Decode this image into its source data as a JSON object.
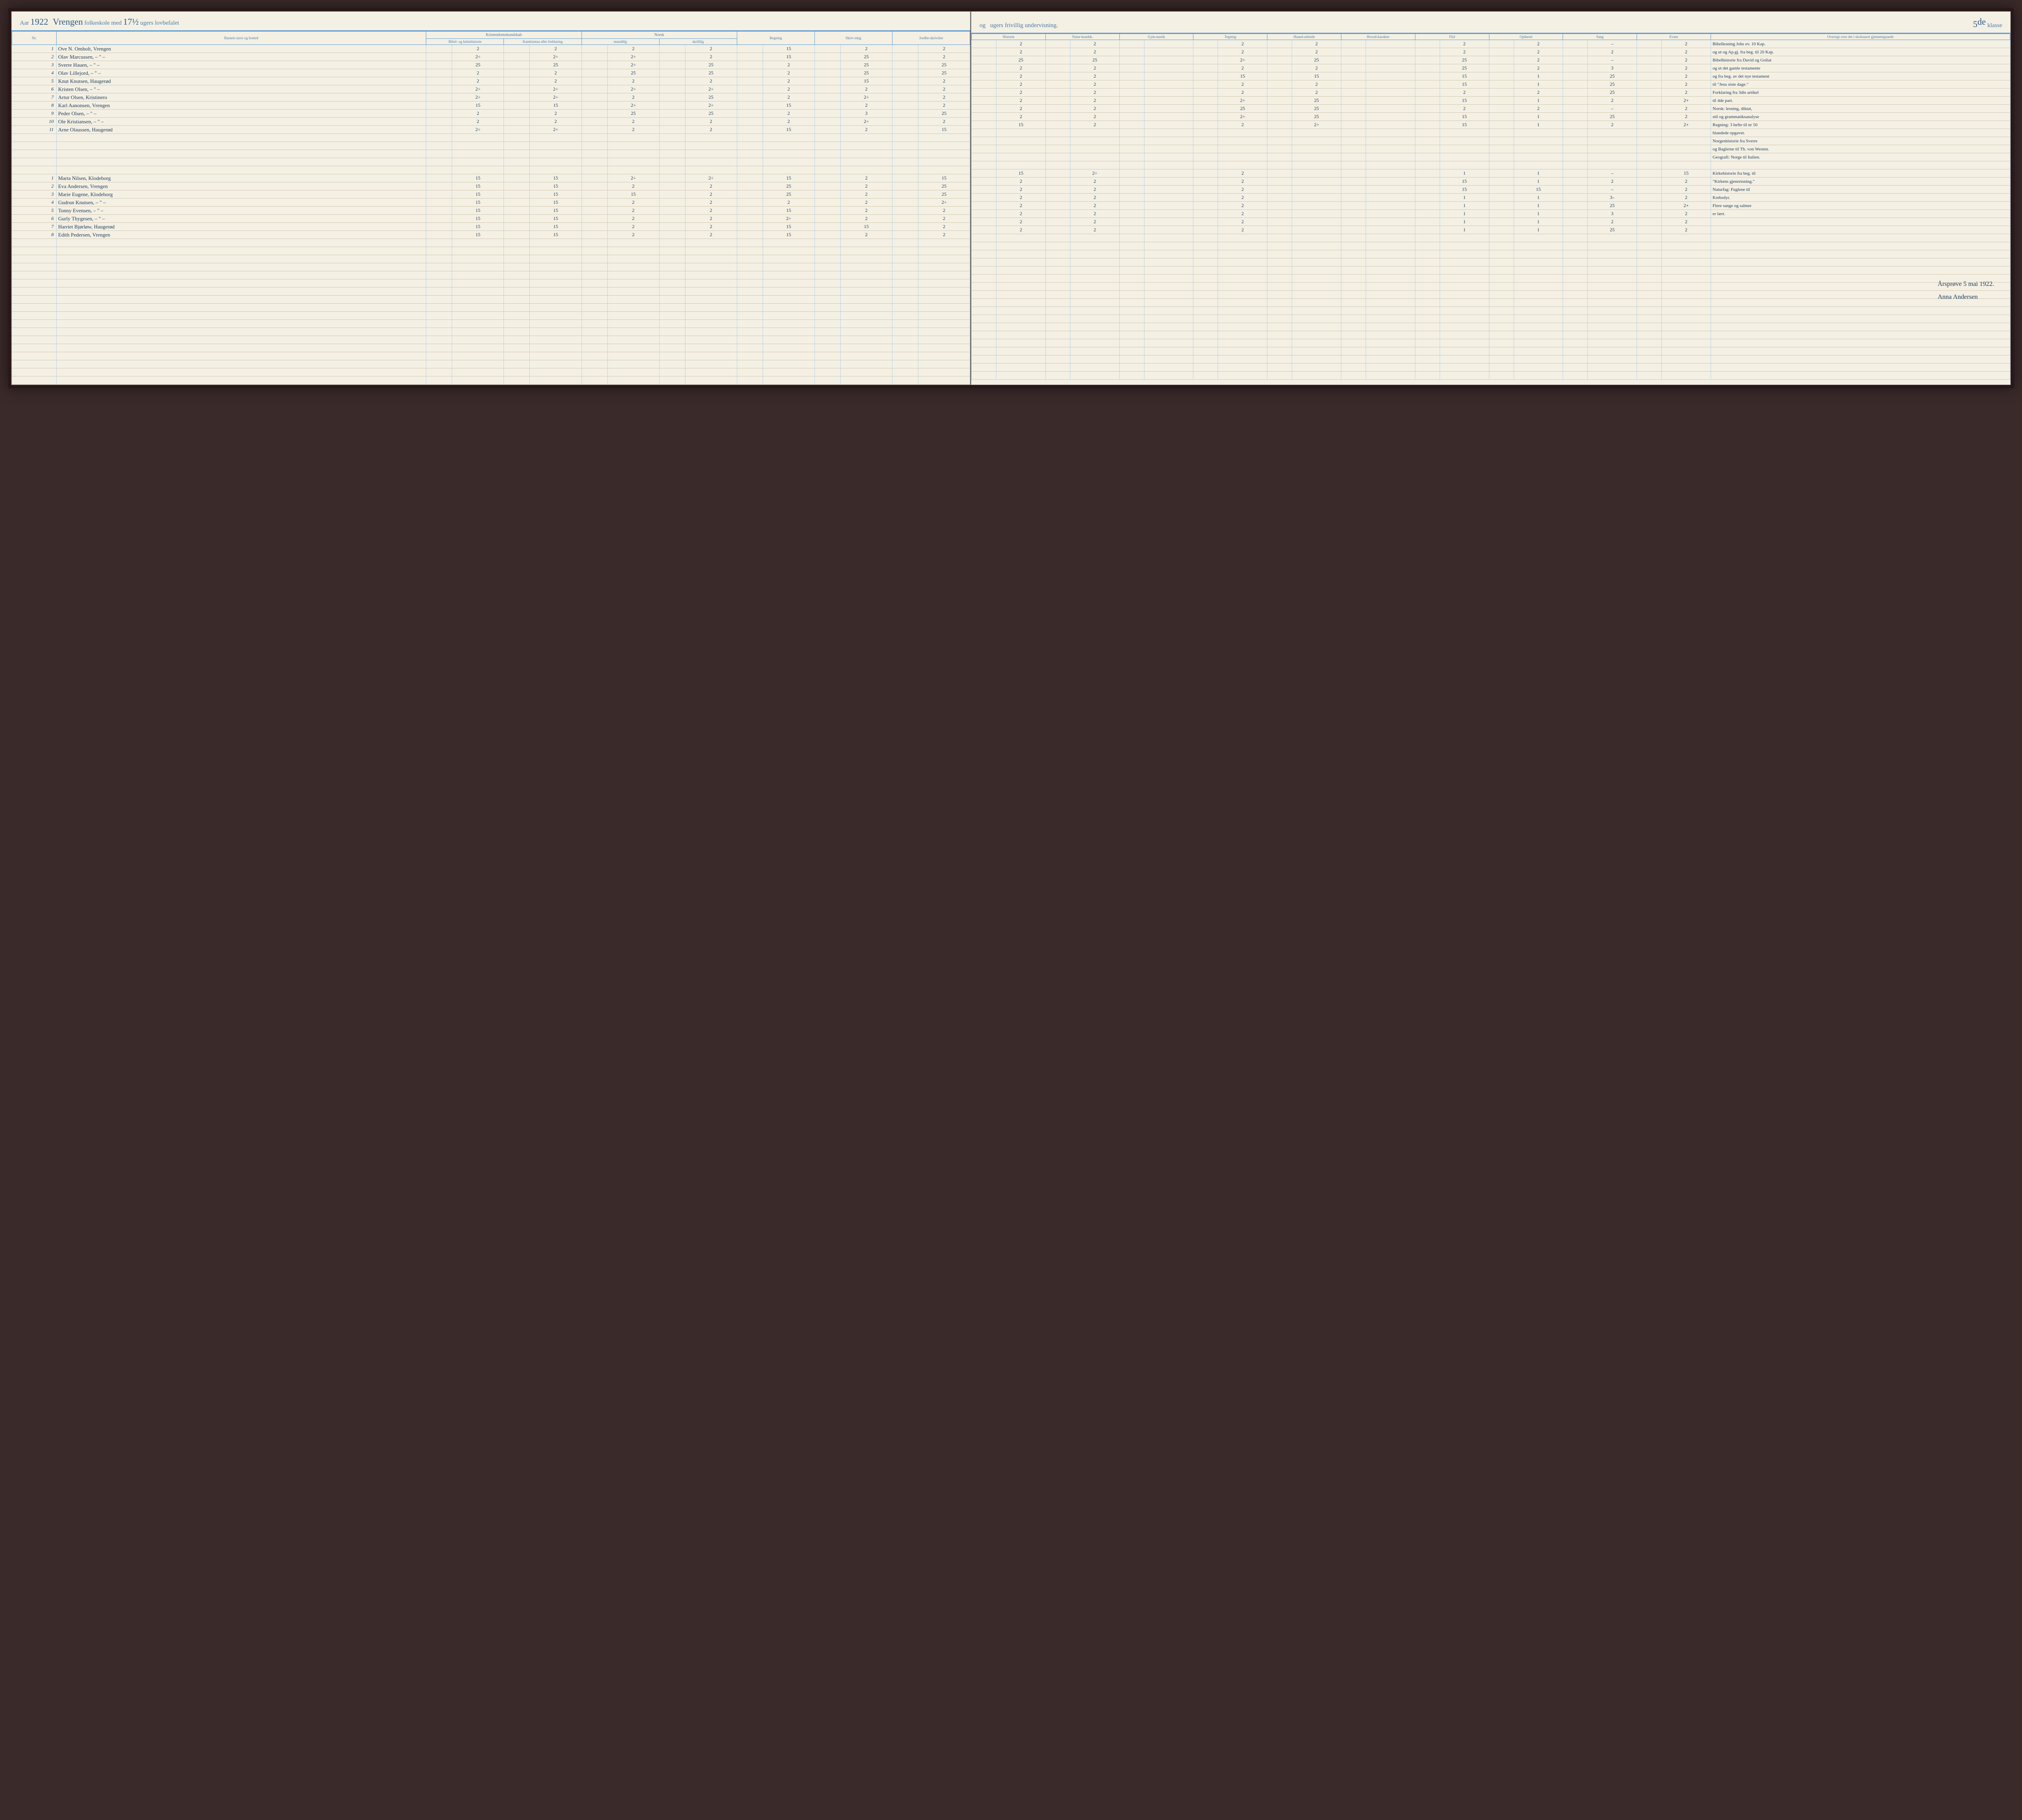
{
  "header": {
    "aar_label": "Aar",
    "year": "1922",
    "school": "Vrengen",
    "text1": "folkeskole med",
    "weeks1": "17½",
    "text2": "ugers lovbefalet",
    "text3": "og",
    "weeks2": "",
    "text4": "ugers frivillig undervisning.",
    "klasse_num": "5",
    "klasse_sup": "de",
    "klasse_label": "klasse"
  },
  "columns": {
    "nr": "Nr.",
    "name": "Barnets navn og bosted",
    "kristendom": "Kristendomskundskab",
    "bibel": "Bibel- og kirkehistorie",
    "katekismus": "Katekismus eller forklaring",
    "norsk": "Norsk",
    "mundtlig": "mundtlig",
    "skriftlig": "skriftlig",
    "regning": "Regning",
    "skrivning": "Skriv-ning",
    "jordbeskrivelse": "Jordbe-skrivelse",
    "historie": "Historie",
    "naturkundsk": "Natur-kundsk.",
    "gymnastik": "Gym-nastik",
    "tegning": "Tegning",
    "haandarbeide": "Haand-arbeide",
    "hovedkarakter": "Hoved-karakter",
    "flid": "Flid",
    "opforsel": "Opførsel",
    "sang": "Sang",
    "evner": "Evner",
    "oversigt": "Oversigt over det i skoleaaret gjennemgaaede"
  },
  "rows_a": [
    {
      "nr": "1",
      "name": "Ove N. Omholt, Vrengen",
      "g": [
        "2",
        "2",
        "2",
        "2",
        "15",
        "2",
        "2",
        "2",
        "2",
        "",
        "2",
        "2",
        "",
        "2",
        "2",
        "–",
        "2"
      ],
      "note": "Bibellesning Johs ev. 10 Kap."
    },
    {
      "nr": "2",
      "name": "Olav Marcussen, – \" –",
      "g": [
        "2÷",
        "2÷",
        "2÷",
        "2",
        "15",
        "25",
        "2",
        "2",
        "2",
        "",
        "2",
        "2",
        "",
        "2",
        "2",
        "2",
        "2"
      ],
      "note": "og ut og Ap.gj. fra beg. til 20 Kap."
    },
    {
      "nr": "3",
      "name": "Sverre Hauen, – \" –",
      "g": [
        "25",
        "25",
        "2÷",
        "25",
        "2",
        "25",
        "25",
        "25",
        "25",
        "",
        "2÷",
        "25",
        "",
        "25",
        "2",
        "–",
        "2"
      ],
      "note": "Bibelhistorie fra David og Goliat"
    },
    {
      "nr": "4",
      "name": "Olav Lillejord, – \" –",
      "g": [
        "2",
        "2",
        "25",
        "25",
        "2",
        "25",
        "25",
        "2",
        "2",
        "",
        "2",
        "2",
        "",
        "25",
        "2",
        "3",
        "2"
      ],
      "note": "og ut det gamle testamente"
    },
    {
      "nr": "5",
      "name": "Knut Knutsen, Haugerød",
      "g": [
        "2",
        "2",
        "2",
        "2",
        "2",
        "15",
        "2",
        "2",
        "2",
        "",
        "15",
        "15",
        "",
        "15",
        "1",
        "25",
        "2"
      ],
      "note": "og fra beg. av det nye testament"
    },
    {
      "nr": "6",
      "name": "Kristen Olsen, – \" –",
      "g": [
        "2÷",
        "2÷",
        "2÷",
        "2÷",
        "2",
        "2",
        "2",
        "2",
        "2",
        "",
        "2",
        "2",
        "",
        "15",
        "1",
        "25",
        "2"
      ],
      "note": "til \"Jesu siste dage.\""
    },
    {
      "nr": "7",
      "name": "Artur Olsen, Kristinero",
      "g": [
        "2÷",
        "2÷",
        "2",
        "25",
        "2",
        "2÷",
        "2",
        "2",
        "2",
        "",
        "2",
        "2",
        "",
        "2",
        "2",
        "25",
        "2"
      ],
      "note": "Forklaring fra 3die artikel"
    },
    {
      "nr": "8",
      "name": "Karl Aanonsen, Vrengen",
      "g": [
        "15",
        "15",
        "2÷",
        "2÷",
        "15",
        "2",
        "2",
        "2",
        "2",
        "",
        "2÷",
        "25",
        "",
        "15",
        "1",
        "2",
        "2+"
      ],
      "note": "til 4de part."
    },
    {
      "nr": "9",
      "name": "Peder Olsen, – \" –",
      "g": [
        "2",
        "2",
        "25",
        "25",
        "2",
        "3",
        "25",
        "2",
        "2",
        "",
        "25",
        "25",
        "",
        "2",
        "2",
        "–",
        "2"
      ],
      "note": "Norsk: lesning, diktat,"
    },
    {
      "nr": "10",
      "name": "Ole Kristiansen, – \" –",
      "g": [
        "2",
        "2",
        "2",
        "2",
        "2",
        "2÷",
        "2",
        "2",
        "2",
        "",
        "2÷",
        "25",
        "",
        "15",
        "1",
        "25",
        "2"
      ],
      "note": "stil og grammatiksanalyse"
    },
    {
      "nr": "11",
      "name": "Arne Olaussen, Haugerød",
      "g": [
        "2÷",
        "2÷",
        "2",
        "2",
        "15",
        "2",
        "15",
        "15",
        "2",
        "",
        "2",
        "2÷",
        "",
        "15",
        "1",
        "2",
        "2+"
      ],
      "note": "Regning: 3 hefte til nr 50"
    }
  ],
  "notes_extra": [
    "blandede opgaver.",
    "Norgeshistorie fra Sverre",
    "og Baglerne til Th. von Westen.",
    "Geografi: Norge til Italien."
  ],
  "rows_b": [
    {
      "nr": "1",
      "name": "Marta Nilsen, Klodeborg",
      "g": [
        "15",
        "15",
        "2÷",
        "2÷",
        "15",
        "2",
        "15",
        "15",
        "2÷",
        "",
        "2",
        "",
        "",
        "1",
        "1",
        "–",
        "15"
      ],
      "note": "Kirkehistorie fra beg. til"
    },
    {
      "nr": "2",
      "name": "Eva Andersen, Vrengen",
      "g": [
        "15",
        "15",
        "2",
        "2",
        "25",
        "2",
        "25",
        "2",
        "2",
        "",
        "2",
        "",
        "",
        "15",
        "1",
        "2",
        "2"
      ],
      "note": "\"Kirkens gjenreisning.\""
    },
    {
      "nr": "3",
      "name": "Marie Eugene, Klodeborg",
      "g": [
        "15",
        "15",
        "15",
        "2",
        "25",
        "2",
        "25",
        "2",
        "2",
        "",
        "2",
        "",
        "",
        "15",
        "15",
        "–",
        "2"
      ],
      "note": "Naturfag: Fuglene til"
    },
    {
      "nr": "4",
      "name": "Gudrun Knutsen, – \" –",
      "g": [
        "15",
        "15",
        "2",
        "2",
        "2",
        "2",
        "2÷",
        "2",
        "2",
        "",
        "2",
        "",
        "",
        "1",
        "1",
        "3–",
        "2"
      ],
      "note": "Krebsdyr."
    },
    {
      "nr": "5",
      "name": "Tonny Evensen, – \" –",
      "g": [
        "15",
        "15",
        "2",
        "2",
        "15",
        "2",
        "2",
        "2",
        "2",
        "",
        "2",
        "",
        "",
        "1",
        "1",
        "25",
        "2+"
      ],
      "note": "Flere sange og salmer"
    },
    {
      "nr": "6",
      "name": "Gurly Thygesen, – \" –",
      "g": [
        "15",
        "15",
        "2",
        "2",
        "2÷",
        "2",
        "2",
        "2",
        "2",
        "",
        "2",
        "",
        "",
        "1",
        "1",
        "3",
        "2"
      ],
      "note": "er lært."
    },
    {
      "nr": "7",
      "name": "Harriet Bjørløw, Haugerød",
      "g": [
        "15",
        "15",
        "2",
        "2",
        "15",
        "15",
        "2",
        "2",
        "2",
        "",
        "2",
        "",
        "",
        "1",
        "1",
        "2",
        "2"
      ],
      "note": ""
    },
    {
      "nr": "8",
      "name": "Edith Pedersen, Vrengen",
      "g": [
        "15",
        "15",
        "2",
        "2",
        "15",
        "2",
        "2",
        "2",
        "2",
        "",
        "2",
        "",
        "",
        "1",
        "1",
        "25",
        "2"
      ],
      "note": ""
    }
  ],
  "signature": {
    "line1": "Årsprøve 5 mai 1922.",
    "line2": "Anna Andersen"
  },
  "colors": {
    "paper": "#f4f0e4",
    "ink": "#1a3a5a",
    "rule_blue": "#5a9bd4",
    "rule_light": "#b8d4e8",
    "rule_tan": "#d4c8b0"
  }
}
